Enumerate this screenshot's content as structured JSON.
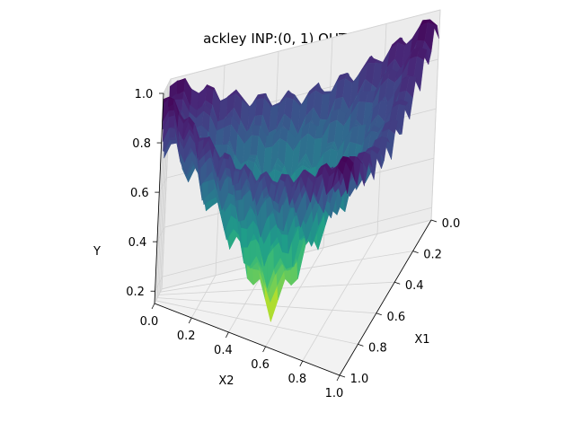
{
  "chart_data": {
    "type": "surface3d",
    "function": "ackley",
    "title": "ackley  INP:(0, 1)  OUT:(0, 1)",
    "xlabel": "X1",
    "ylabel": "X2",
    "zlabel": "Y",
    "x_range": [
      0,
      1
    ],
    "y_range": [
      0,
      1
    ],
    "z_range": [
      0.15,
      1.0
    ],
    "x_ticks": [
      "0.0",
      "0.2",
      "0.4",
      "0.6",
      "0.8",
      "1.0"
    ],
    "y_ticks": [
      "0.0",
      "0.2",
      "0.4",
      "0.6",
      "0.8",
      "1.0"
    ],
    "z_ticks": [
      "0.2",
      "0.4",
      "0.6",
      "0.8",
      "1.0"
    ],
    "grid": true,
    "colormap": "viridis",
    "minimum": {
      "x1": 0.5,
      "x2": 0.5,
      "y": 0.0
    }
  }
}
